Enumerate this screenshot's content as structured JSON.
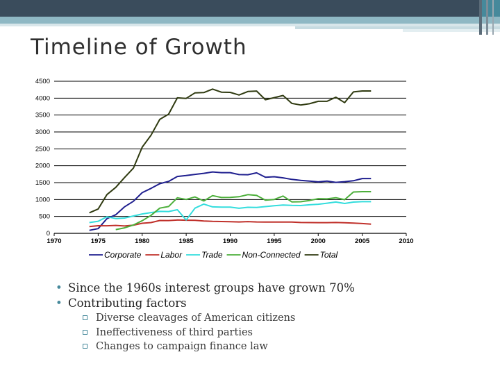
{
  "slide": {
    "title": "Timeline of Growth",
    "bullets": [
      "Since the 1960s interest groups have grown 70%",
      "Contributing factors"
    ],
    "sub_bullets": [
      "Diverse cleavages of American citizens",
      "Ineffectiveness of third parties",
      "Changes to campaign finance law"
    ]
  },
  "chart_data": {
    "type": "line",
    "title": "",
    "xlabel": "",
    "ylabel": "",
    "xlim": [
      1970,
      2010
    ],
    "ylim": [
      0,
      4500
    ],
    "xticks": [
      1970,
      1975,
      1980,
      1985,
      1990,
      1995,
      2000,
      2005,
      2010
    ],
    "yticks": [
      0,
      500,
      1000,
      1500,
      2000,
      2500,
      3000,
      3500,
      4000,
      4500
    ],
    "grid": "horizontal",
    "legend_position": "bottom",
    "series": [
      {
        "name": "Corporate",
        "color": "#1f1f8f",
        "points": [
          [
            1974,
            89
          ],
          [
            1975,
            139
          ],
          [
            1976,
            433
          ],
          [
            1977,
            550
          ],
          [
            1978,
            785
          ],
          [
            1979,
            950
          ],
          [
            1980,
            1204
          ],
          [
            1981,
            1329
          ],
          [
            1982,
            1469
          ],
          [
            1983,
            1538
          ],
          [
            1984,
            1682
          ],
          [
            1985,
            1710
          ],
          [
            1986,
            1744
          ],
          [
            1987,
            1775
          ],
          [
            1988,
            1816
          ],
          [
            1989,
            1796
          ],
          [
            1990,
            1795
          ],
          [
            1991,
            1738
          ],
          [
            1992,
            1735
          ],
          [
            1993,
            1789
          ],
          [
            1994,
            1660
          ],
          [
            1995,
            1674
          ],
          [
            1996,
            1642
          ],
          [
            1997,
            1597
          ],
          [
            1998,
            1567
          ],
          [
            1999,
            1548
          ],
          [
            2000,
            1523
          ],
          [
            2001,
            1545
          ],
          [
            2002,
            1508
          ],
          [
            2003,
            1528
          ],
          [
            2004,
            1555
          ],
          [
            2005,
            1622
          ],
          [
            2006,
            1622
          ]
        ]
      },
      {
        "name": "Labor",
        "color": "#c0302a",
        "points": [
          [
            1974,
            201
          ],
          [
            1975,
            226
          ],
          [
            1976,
            224
          ],
          [
            1977,
            234
          ],
          [
            1978,
            217
          ],
          [
            1979,
            240
          ],
          [
            1980,
            297
          ],
          [
            1981,
            318
          ],
          [
            1982,
            380
          ],
          [
            1983,
            378
          ],
          [
            1984,
            394
          ],
          [
            1985,
            388
          ],
          [
            1986,
            384
          ],
          [
            1987,
            364
          ],
          [
            1988,
            354
          ],
          [
            1989,
            349
          ],
          [
            1990,
            346
          ],
          [
            1991,
            338
          ],
          [
            1992,
            347
          ],
          [
            1993,
            338
          ],
          [
            1994,
            333
          ],
          [
            1995,
            334
          ],
          [
            1996,
            332
          ],
          [
            1997,
            332
          ],
          [
            1998,
            321
          ],
          [
            1999,
            318
          ],
          [
            2000,
            317
          ],
          [
            2001,
            317
          ],
          [
            2002,
            320
          ],
          [
            2003,
            315
          ],
          [
            2004,
            304
          ],
          [
            2005,
            290
          ],
          [
            2006,
            273
          ]
        ]
      },
      {
        "name": "Trade",
        "color": "#33dddd",
        "points": [
          [
            1974,
            318
          ],
          [
            1975,
            357
          ],
          [
            1976,
            489
          ],
          [
            1977,
            438
          ],
          [
            1978,
            453
          ],
          [
            1979,
            514
          ],
          [
            1980,
            574
          ],
          [
            1981,
            614
          ],
          [
            1982,
            649
          ],
          [
            1983,
            645
          ],
          [
            1984,
            698
          ],
          [
            1985,
            395
          ],
          [
            1986,
            745
          ],
          [
            1987,
            865
          ],
          [
            1988,
            782
          ],
          [
            1989,
            777
          ],
          [
            1990,
            774
          ],
          [
            1991,
            742
          ],
          [
            1992,
            770
          ],
          [
            1993,
            767
          ],
          [
            1994,
            792
          ],
          [
            1995,
            815
          ],
          [
            1996,
            838
          ],
          [
            1997,
            825
          ],
          [
            1998,
            821
          ],
          [
            1999,
            844
          ],
          [
            2000,
            860
          ],
          [
            2001,
            891
          ],
          [
            2002,
            926
          ],
          [
            2003,
            884
          ],
          [
            2004,
            925
          ],
          [
            2005,
            937
          ],
          [
            2006,
            937
          ]
        ]
      },
      {
        "name": "Non-Connected",
        "color": "#4caf3a",
        "points": [
          [
            1977,
            110
          ],
          [
            1978,
            162
          ],
          [
            1979,
            247
          ],
          [
            1980,
            374
          ],
          [
            1981,
            531
          ],
          [
            1982,
            746
          ],
          [
            1983,
            793
          ],
          [
            1984,
            1053
          ],
          [
            1985,
            1003
          ],
          [
            1986,
            1077
          ],
          [
            1987,
            957
          ],
          [
            1988,
            1115
          ],
          [
            1989,
            1060
          ],
          [
            1990,
            1062
          ],
          [
            1991,
            1083
          ],
          [
            1992,
            1145
          ],
          [
            1993,
            1121
          ],
          [
            1994,
            980
          ],
          [
            1995,
            1002
          ],
          [
            1996,
            1103
          ],
          [
            1997,
            931
          ],
          [
            1998,
            935
          ],
          [
            1999,
            972
          ],
          [
            2000,
            1026
          ],
          [
            2001,
            1019
          ],
          [
            2002,
            1055
          ],
          [
            2003,
            997
          ],
          [
            2004,
            1223
          ],
          [
            2005,
            1233
          ],
          [
            2006,
            1233
          ]
        ]
      },
      {
        "name": "Total",
        "color": "#2f3a10",
        "points": [
          [
            1974,
            608
          ],
          [
            1975,
            722
          ],
          [
            1976,
            1146
          ],
          [
            1977,
            1360
          ],
          [
            1978,
            1653
          ],
          [
            1979,
            1930
          ],
          [
            1980,
            2551
          ],
          [
            1981,
            2901
          ],
          [
            1982,
            3371
          ],
          [
            1983,
            3525
          ],
          [
            1984,
            4009
          ],
          [
            1985,
            3992
          ],
          [
            1986,
            4157
          ],
          [
            1987,
            4165
          ],
          [
            1988,
            4268
          ],
          [
            1989,
            4178
          ],
          [
            1990,
            4172
          ],
          [
            1991,
            4094
          ],
          [
            1992,
            4195
          ],
          [
            1993,
            4210
          ],
          [
            1994,
            3954
          ],
          [
            1995,
            4016
          ],
          [
            1996,
            4079
          ],
          [
            1997,
            3844
          ],
          [
            1998,
            3798
          ],
          [
            1999,
            3835
          ],
          [
            2000,
            3907
          ],
          [
            2001,
            3907
          ],
          [
            2002,
            4027
          ],
          [
            2003,
            3868
          ],
          [
            2004,
            4184
          ],
          [
            2005,
            4212
          ],
          [
            2006,
            4212
          ]
        ]
      }
    ]
  }
}
